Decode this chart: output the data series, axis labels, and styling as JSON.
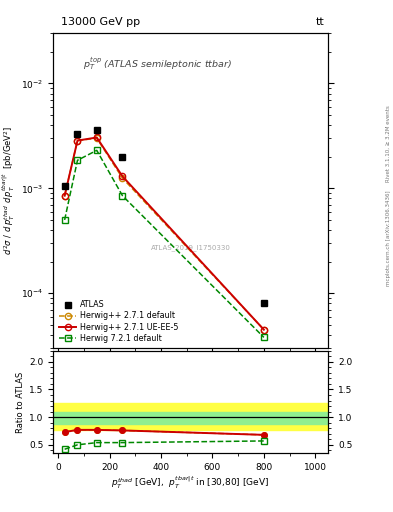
{
  "title_left": "13000 GeV pp",
  "title_right": "tt",
  "annotation_center": "$p_T^{top}$ (ATLAS semileptonic ttbar)",
  "watermark": "ATLAS_2019_I1750330",
  "right_label_top": "Rivet 3.1.10, ≥ 3.2M events",
  "right_label_bot": "mcplots.cern.ch [arXiv:1306.3436]",
  "xlabel": "$p_T^{thad}$ [GeV],  $p_T^{tbar|t}$ in [30,80] [GeV]",
  "ylabel": "$d^2\\sigma$ / $d\\,p_T^{thad}$ $d\\,p_T^{tbar|t}$  [pb/GeV$^2$]",
  "ylabel_ratio": "Ratio to ATLAS",
  "ylim_main": [
    3e-05,
    0.03
  ],
  "ylim_ratio": [
    0.35,
    2.2
  ],
  "xlim": [
    -20,
    1050
  ],
  "x_data": [
    25,
    75,
    150,
    250,
    800
  ],
  "atlas_data": [
    0.00105,
    0.0033,
    0.0036,
    0.002,
    8e-05
  ],
  "herwig_default_data": [
    0.00085,
    0.00285,
    0.003,
    0.00125,
    4.5e-05
  ],
  "herwig_ueee5_data": [
    0.00085,
    0.00285,
    0.00305,
    0.0013,
    4.5e-05
  ],
  "herwig721_data": [
    0.0005,
    0.00185,
    0.0023,
    0.00085,
    3.8e-05
  ],
  "ratio_herwig_default": [
    0.73,
    0.77,
    0.77,
    0.76,
    0.68
  ],
  "ratio_herwig_ueee5": [
    0.73,
    0.77,
    0.77,
    0.76,
    0.68
  ],
  "ratio_herwig721": [
    0.42,
    0.5,
    0.54,
    0.54,
    0.57
  ],
  "band_green_lo": 0.875,
  "band_green_hi": 1.1,
  "band_yellow_lo": 0.76,
  "band_yellow_hi": 1.25,
  "color_atlas": "#000000",
  "color_herwig_default": "#cc8800",
  "color_herwig_ueee5": "#cc0000",
  "color_herwig721": "#008800",
  "color_band_green": "#90ee90",
  "color_band_yellow": "#ffff44"
}
